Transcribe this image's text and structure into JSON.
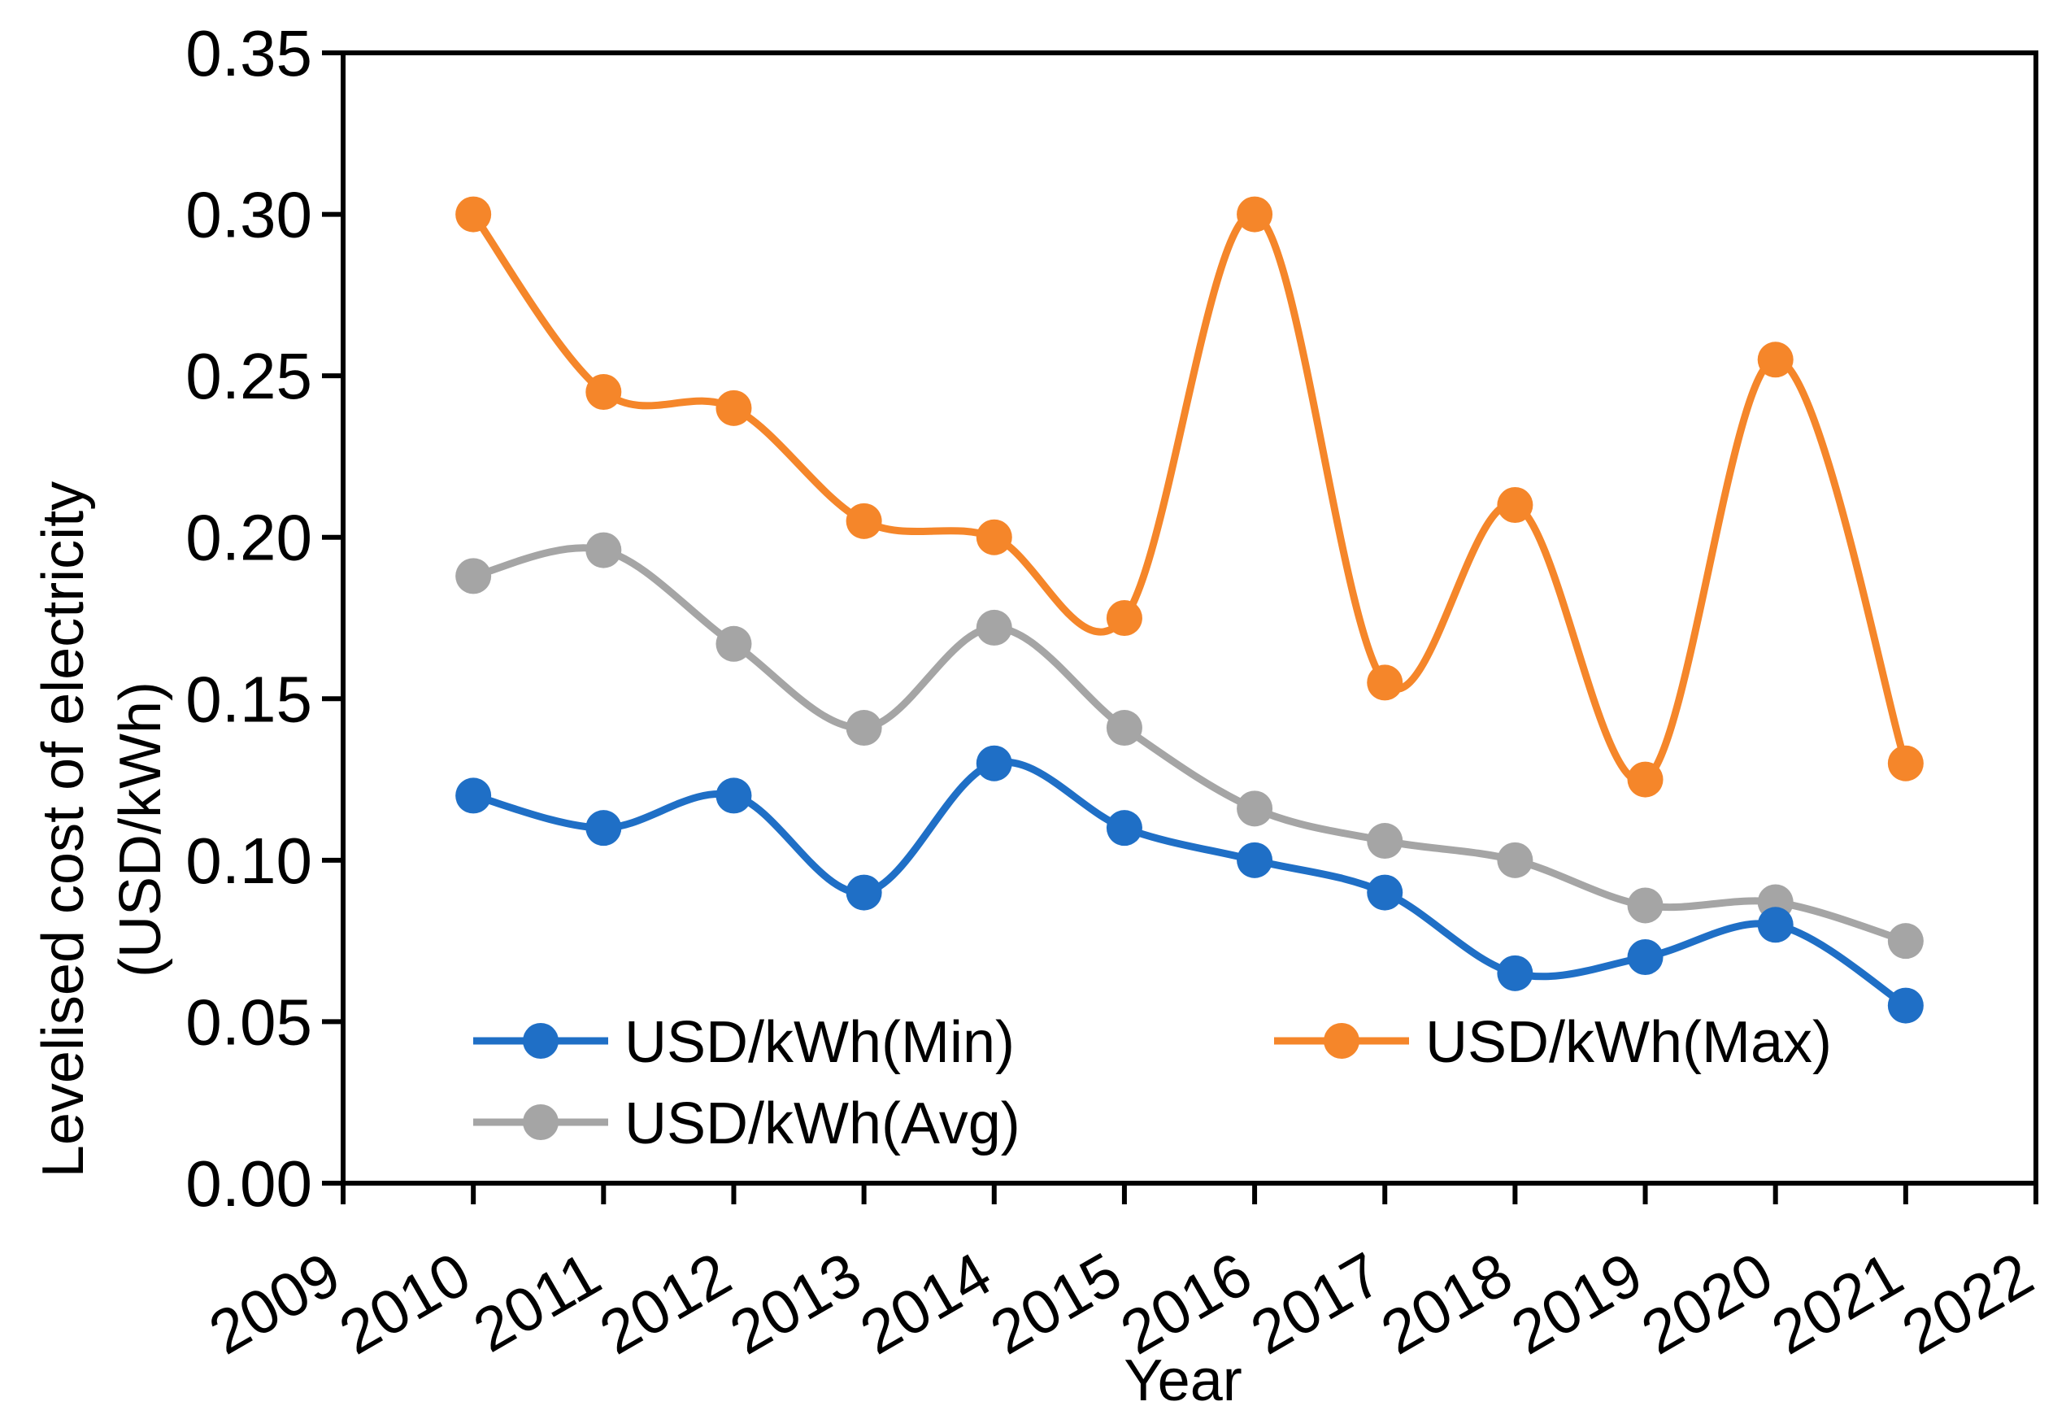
{
  "chart_data": {
    "type": "line",
    "smooth": true,
    "title": "",
    "xlabel": "Year",
    "ylabel": "Levelised cost of electricity (USD/kWh)",
    "ylabel_lines": [
      "Levelised cost of electricity",
      "(USD/kWh)"
    ],
    "xlim": [
      2009,
      2022
    ],
    "ylim": [
      0,
      0.35
    ],
    "x_ticks": [
      2009,
      2010,
      2011,
      2012,
      2013,
      2014,
      2015,
      2016,
      2017,
      2018,
      2019,
      2020,
      2021,
      2022
    ],
    "y_ticks": [
      "0.00",
      "0.05",
      "0.10",
      "0.15",
      "0.20",
      "0.25",
      "0.30",
      "0.35"
    ],
    "grid": false,
    "legend_position": "bottom-inside",
    "x": [
      2010,
      2011,
      2012,
      2013,
      2014,
      2015,
      2016,
      2017,
      2018,
      2019,
      2020,
      2021
    ],
    "series": [
      {
        "name": "USD/kWh(Min)",
        "color": "#1f6fc6",
        "values": [
          0.12,
          0.11,
          0.12,
          0.09,
          0.13,
          0.11,
          0.1,
          0.09,
          0.065,
          0.07,
          0.08,
          0.055
        ]
      },
      {
        "name": "USD/kWh(Max)",
        "color": "#f5862a",
        "values": [
          0.3,
          0.245,
          0.24,
          0.205,
          0.2,
          0.175,
          0.3,
          0.155,
          0.21,
          0.125,
          0.255,
          0.13
        ]
      },
      {
        "name": "USD/kWh(Avg)",
        "color": "#a5a5a5",
        "values": [
          0.188,
          0.196,
          0.167,
          0.141,
          0.172,
          0.141,
          0.116,
          0.106,
          0.1,
          0.086,
          0.087,
          0.075
        ]
      }
    ]
  }
}
